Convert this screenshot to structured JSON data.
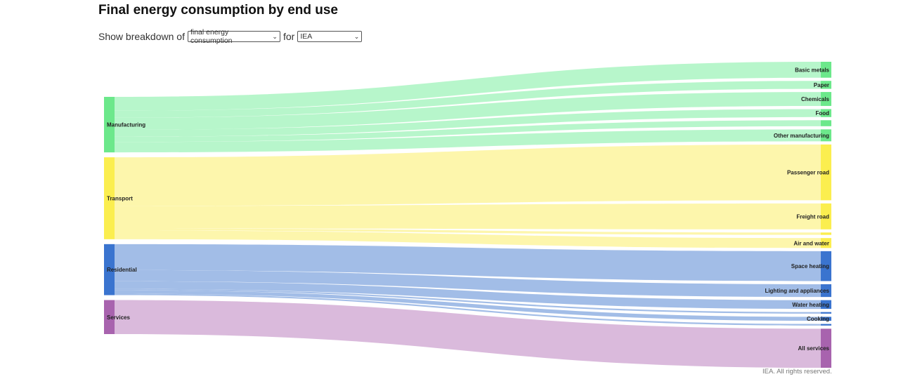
{
  "page": {
    "title": "Final energy consumption by end use",
    "controls": {
      "prefix": "Show breakdown of",
      "breakdown_value": "final energy consumption",
      "middle": "for",
      "region_value": "IEA"
    },
    "credit": "IEA. All rights reserved."
  },
  "chart_data": {
    "type": "sankey",
    "title": "Final energy consumption by end use",
    "units": "",
    "sources": [
      {
        "name": "Manufacturing",
        "color": "#6ce88b",
        "link_color": "#b3f5c8"
      },
      {
        "name": "Transport",
        "color": "#fbee4f",
        "link_color": "#fdf6a8"
      },
      {
        "name": "Residential",
        "color": "#3a74cf",
        "link_color": "#9db9e6"
      },
      {
        "name": "Services",
        "color": "#a863ae",
        "link_color": "#d8b6da"
      }
    ],
    "targets": [
      {
        "name": "Basic metals",
        "source": "Manufacturing",
        "value": 4.0
      },
      {
        "name": "Paper",
        "source": "Manufacturing",
        "value": 2.0
      },
      {
        "name": "Chemicals",
        "source": "Manufacturing",
        "value": 3.5
      },
      {
        "name": "Food",
        "source": "Manufacturing",
        "value": 2.0
      },
      {
        "name": "",
        "source": "Manufacturing",
        "value": 1.5
      },
      {
        "name": "Other manufacturing",
        "source": "Manufacturing",
        "value": 3.0
      },
      {
        "name": "Passenger road",
        "source": "Transport",
        "value": 14.0
      },
      {
        "name": "Freight road",
        "source": "Transport",
        "value": 6.5
      },
      {
        "name": "",
        "source": "Transport",
        "value": 0.6
      },
      {
        "name": "Air and water",
        "source": "Transport",
        "value": 2.5
      },
      {
        "name": "Space heating",
        "source": "Residential",
        "value": 7.5
      },
      {
        "name": "Lighting and appliances",
        "source": "Residential",
        "value": 3.2
      },
      {
        "name": "Water heating",
        "source": "Residential",
        "value": 2.2
      },
      {
        "name": "",
        "source": "Residential",
        "value": 0.4
      },
      {
        "name": "Cooking",
        "source": "Residential",
        "value": 1.0
      },
      {
        "name": "",
        "source": "Residential",
        "value": 0.4
      },
      {
        "name": "All services",
        "source": "Services",
        "value": 9.8
      }
    ]
  }
}
